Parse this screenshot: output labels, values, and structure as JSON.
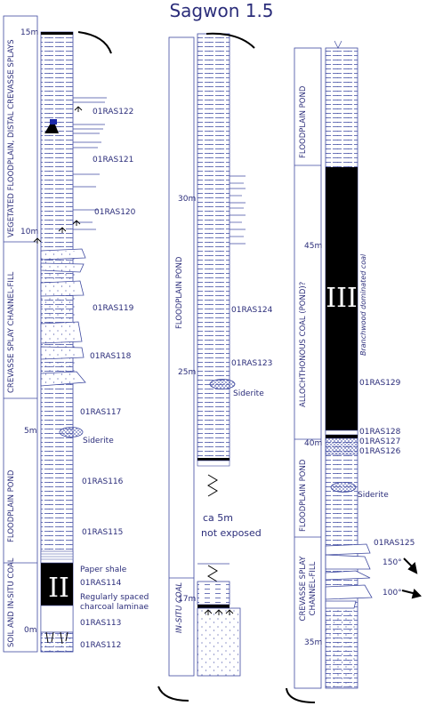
{
  "title": "Sagwon 1.5",
  "colors": {
    "ink": "#2b2d7a",
    "lines": "#3f4aa0",
    "coal": "#000000",
    "siderite": "#6e74b6"
  },
  "column1": {
    "depths": [
      "15m",
      "10m",
      "5m",
      "0m"
    ],
    "samples": [
      "01RAS122",
      "01RAS121",
      "01RAS120",
      "01RAS119",
      "01RAS118",
      "01RAS117",
      "01RAS116",
      "01RAS115",
      "01RAS114",
      "01RAS113",
      "01RAS112"
    ],
    "siderite_label": "Siderite",
    "notes": [
      "Paper shale",
      "Regularly spaced",
      "charcoal laminae"
    ],
    "roman": "II",
    "facies": [
      "SOIL AND IN-SITU COAL",
      "FLOODPLAIN POND",
      "CREVASSE SPLAY CHANNEL-FILL",
      "VEGETATED FLOODPLAIN, DISTAL CREVASSE SPLAYS"
    ]
  },
  "column2": {
    "depths": [
      "30m",
      "25m",
      "17m"
    ],
    "samples": [
      "01RAS124",
      "01RAS123"
    ],
    "siderite_label": "Siderite",
    "gap_note": [
      "ca 5m",
      "not exposed"
    ],
    "facies": [
      "FLOODPLAIN POND",
      "IN-SITU COAL"
    ]
  },
  "column3": {
    "depths": [
      "45m",
      "40m",
      "35m"
    ],
    "samples": [
      "01RAS129",
      "01RAS128",
      "01RAS127",
      "01RAS126",
      "01RAS125"
    ],
    "siderite_label": "Siderite",
    "roman": "III",
    "coal_note": "Branchwood dominated coal",
    "angles": [
      "150°",
      "100°"
    ],
    "facies": [
      "FLOODPLAIN POND",
      "ALLOCHTHONOUS COAL (POND)?",
      "FLOODPLAIN POND",
      "CREVASSE SPLAY CHANNEL-FILL"
    ]
  }
}
